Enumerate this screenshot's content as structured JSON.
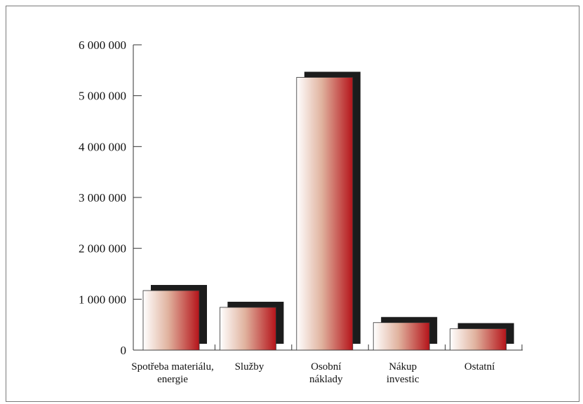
{
  "chart_data": {
    "type": "bar",
    "style": "3d-shadowed-bars",
    "categories": [
      [
        "Spotřeba materiálu,",
        "energie"
      ],
      [
        "Služby"
      ],
      [
        "Osobní",
        "náklady"
      ],
      [
        "Nákup",
        "investic"
      ],
      [
        "Ostatní"
      ]
    ],
    "values": [
      1170000,
      840000,
      5360000,
      540000,
      420000
    ],
    "ylim": [
      0,
      6000000
    ],
    "yticks": [
      0,
      1000000,
      2000000,
      3000000,
      4000000,
      5000000,
      6000000
    ],
    "ytick_labels": [
      "0",
      "1 000 000",
      "2 000 000",
      "3 000 000",
      "4 000 000",
      "5 000 000",
      "6 000 000"
    ],
    "title": "",
    "xlabel": "",
    "ylabel": "",
    "grid": false,
    "legend": "none",
    "colors": {
      "gradient_start": "#ffffff",
      "gradient_mid": "#e0b29e",
      "gradient_end": "#b5141a",
      "shadow": "#1c1c1c",
      "axis": "#333333"
    }
  }
}
